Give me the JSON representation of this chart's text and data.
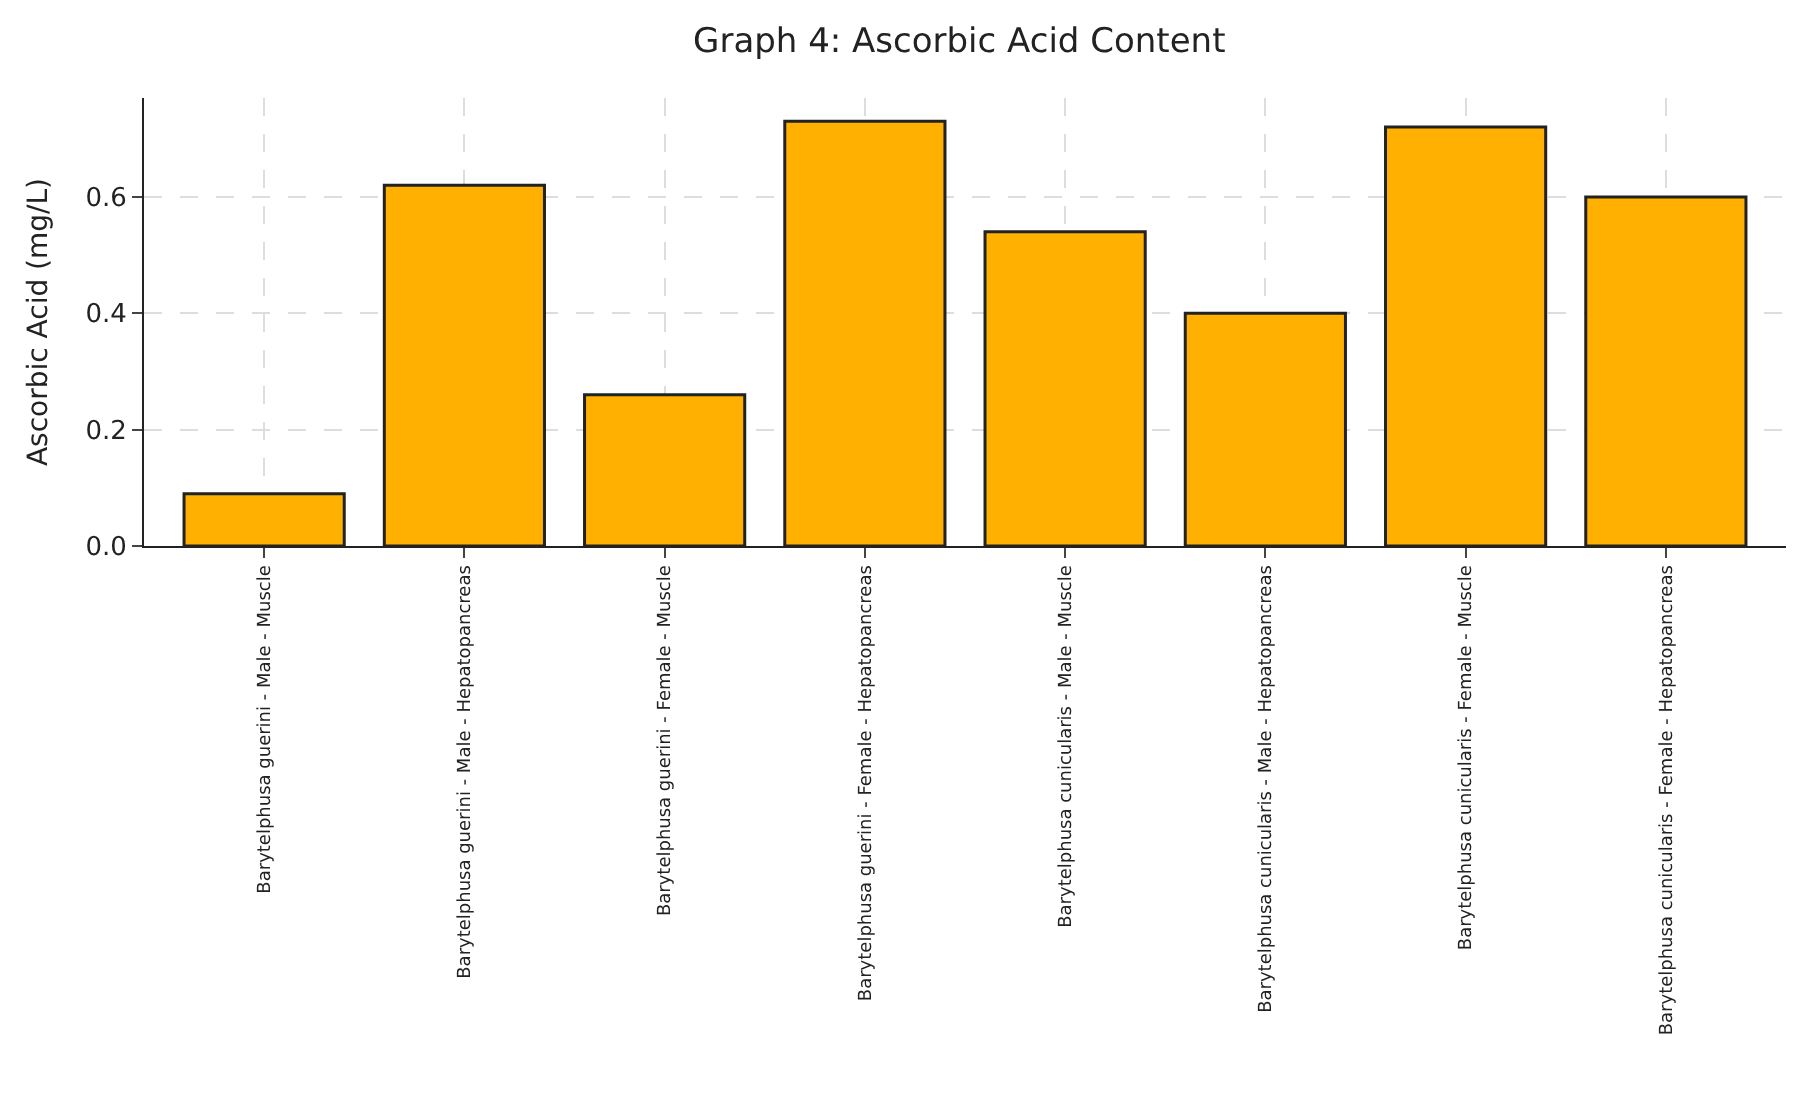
{
  "chart_data": {
    "type": "bar",
    "title": "Graph 4: Ascorbic Acid Content",
    "ylabel": "Ascorbic Acid (mg/L)",
    "categories": [
      "Barytelphusa guerini - Male - Muscle",
      "Barytelphusa guerini - Male - Hepatopancreas",
      "Barytelphusa guerini - Female - Muscle",
      "Barytelphusa guerini - Female - Hepatopancreas",
      "Barytelphusa cunicularis - Male - Muscle",
      "Barytelphusa cunicularis - Male - Hepatopancreas",
      "Barytelphusa cunicularis - Female - Muscle",
      "Barytelphusa cunicularis - Female - Hepatopancreas"
    ],
    "values": [
      0.09,
      0.62,
      0.26,
      0.73,
      0.54,
      0.4,
      0.72,
      0.6
    ],
    "color": "#ffb000",
    "ylim": [
      0,
      0.77
    ],
    "yticks": [
      {
        "value": 0,
        "label": "0.0"
      },
      0.2,
      0.4,
      0.6
    ],
    "grid": true
  }
}
